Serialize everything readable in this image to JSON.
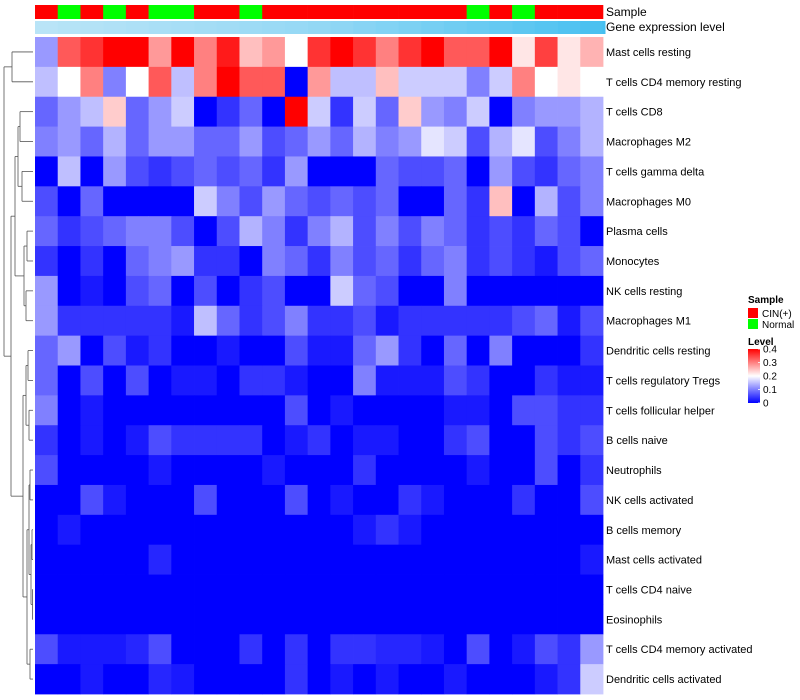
{
  "chart_data": {
    "type": "heatmap",
    "title": "",
    "annotation_tracks": [
      "Sample",
      "Gene expression level"
    ],
    "sample_groups": [
      "CIN(+)",
      "Normal",
      "CIN(+)",
      "Normal",
      "CIN(+)",
      "Normal",
      "Normal",
      "CIN(+)",
      "CIN(+)",
      "Normal",
      "CIN(+)",
      "CIN(+)",
      "CIN(+)",
      "CIN(+)",
      "CIN(+)",
      "CIN(+)",
      "CIN(+)",
      "CIN(+)",
      "CIN(+)",
      "Normal",
      "CIN(+)",
      "Normal",
      "CIN(+)",
      "CIN(+)",
      "CIN(+)"
    ],
    "expression_level_track": [
      0.05,
      0.08,
      0.1,
      0.12,
      0.15,
      0.18,
      0.2,
      0.22,
      0.25,
      0.28,
      0.3,
      0.33,
      0.36,
      0.4,
      0.45,
      0.5,
      0.55,
      0.6,
      0.65,
      0.7,
      0.75,
      0.8,
      0.85,
      0.9,
      0.95
    ],
    "rows": [
      "Mast cells resting",
      "T cells CD4 memory resting",
      "T cells CD8",
      "Macrophages M2",
      "T cells gamma delta",
      "Macrophages M0",
      "Plasma cells",
      "Monocytes",
      "NK cells resting",
      "Macrophages M1",
      "Dendritic cells resting",
      "T cells regulatory  Tregs",
      "T cells follicular helper",
      "B cells naive",
      "Neutrophils",
      "NK cells activated",
      "B cells memory",
      "Mast cells activated",
      "T cells CD4 naive",
      "Eosinophils",
      "T cells CD4 memory activated",
      "Dendritic cells activated"
    ],
    "values": [
      [
        0.12,
        0.33,
        0.36,
        0.4,
        0.4,
        0.28,
        0.4,
        0.3,
        0.38,
        0.25,
        0.28,
        0.2,
        0.36,
        0.4,
        0.36,
        0.3,
        0.36,
        0.4,
        0.33,
        0.33,
        0.4,
        0.22,
        0.35,
        0.22,
        0.26
      ],
      [
        0.15,
        0.2,
        0.3,
        0.1,
        0.2,
        0.33,
        0.15,
        0.3,
        0.4,
        0.33,
        0.33,
        0.0,
        0.28,
        0.15,
        0.15,
        0.25,
        0.16,
        0.16,
        0.16,
        0.1,
        0.16,
        0.3,
        0.2,
        0.22,
        0.2
      ],
      [
        0.08,
        0.12,
        0.15,
        0.24,
        0.08,
        0.12,
        0.16,
        0.0,
        0.04,
        0.08,
        0.0,
        0.4,
        0.16,
        0.04,
        0.16,
        0.08,
        0.24,
        0.12,
        0.1,
        0.16,
        0.0,
        0.1,
        0.12,
        0.12,
        0.14
      ],
      [
        0.1,
        0.12,
        0.08,
        0.14,
        0.08,
        0.12,
        0.12,
        0.08,
        0.08,
        0.12,
        0.06,
        0.08,
        0.12,
        0.08,
        0.14,
        0.1,
        0.12,
        0.18,
        0.16,
        0.06,
        0.14,
        0.18,
        0.06,
        0.1,
        0.14
      ],
      [
        0.0,
        0.15,
        0.0,
        0.12,
        0.06,
        0.04,
        0.06,
        0.08,
        0.06,
        0.08,
        0.04,
        0.12,
        0.0,
        0.0,
        0.0,
        0.08,
        0.06,
        0.06,
        0.08,
        0.0,
        0.12,
        0.06,
        0.04,
        0.08,
        0.1
      ],
      [
        0.06,
        0.0,
        0.08,
        0.0,
        0.0,
        0.0,
        0.0,
        0.16,
        0.1,
        0.06,
        0.12,
        0.08,
        0.06,
        0.08,
        0.06,
        0.08,
        0.0,
        0.0,
        0.08,
        0.04,
        0.25,
        0.0,
        0.14,
        0.06,
        0.1
      ],
      [
        0.08,
        0.04,
        0.06,
        0.08,
        0.1,
        0.1,
        0.06,
        0.0,
        0.06,
        0.14,
        0.1,
        0.04,
        0.1,
        0.14,
        0.06,
        0.1,
        0.06,
        0.1,
        0.08,
        0.04,
        0.06,
        0.04,
        0.08,
        0.06,
        0.0
      ],
      [
        0.04,
        0.0,
        0.04,
        0.0,
        0.08,
        0.1,
        0.12,
        0.04,
        0.04,
        0.0,
        0.1,
        0.08,
        0.04,
        0.1,
        0.06,
        0.08,
        0.04,
        0.08,
        0.1,
        0.04,
        0.06,
        0.04,
        0.02,
        0.06,
        0.08
      ],
      [
        0.12,
        0.0,
        0.02,
        0.0,
        0.06,
        0.08,
        0.0,
        0.06,
        0.0,
        0.04,
        0.06,
        0.0,
        0.0,
        0.16,
        0.08,
        0.06,
        0.0,
        0.0,
        0.1,
        0.0,
        0.0,
        0.0,
        0.0,
        0.0,
        0.0
      ],
      [
        0.12,
        0.04,
        0.04,
        0.04,
        0.04,
        0.04,
        0.02,
        0.15,
        0.08,
        0.04,
        0.06,
        0.1,
        0.04,
        0.04,
        0.06,
        0.02,
        0.04,
        0.04,
        0.04,
        0.04,
        0.04,
        0.06,
        0.08,
        0.02,
        0.06
      ],
      [
        0.08,
        0.12,
        0.0,
        0.06,
        0.02,
        0.04,
        0.0,
        0.0,
        0.02,
        0.0,
        0.0,
        0.06,
        0.02,
        0.02,
        0.08,
        0.12,
        0.04,
        0.0,
        0.08,
        0.0,
        0.1,
        0.0,
        0.0,
        0.0,
        0.04
      ],
      [
        0.08,
        0.0,
        0.06,
        0.0,
        0.06,
        0.0,
        0.02,
        0.02,
        0.0,
        0.04,
        0.04,
        0.02,
        0.0,
        0.0,
        0.1,
        0.02,
        0.02,
        0.02,
        0.06,
        0.04,
        0.0,
        0.0,
        0.04,
        0.02,
        0.02
      ],
      [
        0.1,
        0.0,
        0.02,
        0.0,
        0.0,
        0.0,
        0.0,
        0.0,
        0.0,
        0.0,
        0.0,
        0.06,
        0.0,
        0.02,
        0.0,
        0.0,
        0.0,
        0.0,
        0.02,
        0.02,
        0.0,
        0.06,
        0.06,
        0.04,
        0.04
      ],
      [
        0.04,
        0.0,
        0.02,
        0.0,
        0.02,
        0.06,
        0.04,
        0.04,
        0.04,
        0.04,
        0.0,
        0.02,
        0.04,
        0.0,
        0.02,
        0.02,
        0.0,
        0.0,
        0.04,
        0.06,
        0.0,
        0.0,
        0.06,
        0.04,
        0.06
      ],
      [
        0.06,
        0.0,
        0.0,
        0.0,
        0.0,
        0.02,
        0.0,
        0.0,
        0.0,
        0.0,
        0.02,
        0.0,
        0.0,
        0.0,
        0.04,
        0.0,
        0.0,
        0.0,
        0.0,
        0.02,
        0.0,
        0.0,
        0.06,
        0.0,
        0.04
      ],
      [
        0.0,
        0.0,
        0.06,
        0.02,
        0.0,
        0.0,
        0.0,
        0.06,
        0.0,
        0.0,
        0.0,
        0.06,
        0.0,
        0.02,
        0.0,
        0.0,
        0.04,
        0.02,
        0.0,
        0.0,
        0.0,
        0.04,
        0.0,
        0.0,
        0.06
      ],
      [
        0.0,
        0.02,
        0.0,
        0.0,
        0.0,
        0.0,
        0.0,
        0.0,
        0.0,
        0.0,
        0.0,
        0.0,
        0.0,
        0.0,
        0.02,
        0.04,
        0.02,
        0.0,
        0.0,
        0.0,
        0.0,
        0.0,
        0.0,
        0.0,
        0.0
      ],
      [
        0.0,
        0.0,
        0.0,
        0.0,
        0.0,
        0.03,
        0.0,
        0.0,
        0.0,
        0.0,
        0.0,
        0.0,
        0.0,
        0.0,
        0.0,
        0.0,
        0.0,
        0.0,
        0.0,
        0.0,
        0.0,
        0.0,
        0.0,
        0.0,
        0.02
      ],
      [
        0.0,
        0.0,
        0.0,
        0.0,
        0.0,
        0.0,
        0.0,
        0.0,
        0.0,
        0.0,
        0.0,
        0.0,
        0.0,
        0.0,
        0.0,
        0.0,
        0.0,
        0.0,
        0.0,
        0.0,
        0.0,
        0.0,
        0.0,
        0.0,
        0.0
      ],
      [
        0.0,
        0.0,
        0.0,
        0.0,
        0.0,
        0.0,
        0.0,
        0.0,
        0.0,
        0.0,
        0.0,
        0.0,
        0.0,
        0.0,
        0.0,
        0.0,
        0.0,
        0.0,
        0.0,
        0.0,
        0.0,
        0.0,
        0.0,
        0.0,
        0.0
      ],
      [
        0.06,
        0.02,
        0.02,
        0.02,
        0.03,
        0.06,
        0.0,
        0.0,
        0.0,
        0.04,
        0.0,
        0.04,
        0.0,
        0.04,
        0.04,
        0.03,
        0.03,
        0.02,
        0.0,
        0.06,
        0.0,
        0.02,
        0.06,
        0.04,
        0.12
      ],
      [
        0.0,
        0.0,
        0.02,
        0.0,
        0.0,
        0.03,
        0.02,
        0.0,
        0.0,
        0.0,
        0.0,
        0.04,
        0.0,
        0.02,
        0.0,
        0.02,
        0.0,
        0.0,
        0.02,
        0.0,
        0.0,
        0.0,
        0.02,
        0.04,
        0.16
      ]
    ],
    "color_scale": {
      "min": 0,
      "mid": 0.2,
      "max": 0.4,
      "low": "#0000ff",
      "midcolor": "#ffffff",
      "high": "#ff0000"
    },
    "legend_sample": {
      "title": "Sample",
      "items": [
        {
          "label": "CIN(+)",
          "color": "#ff0000"
        },
        {
          "label": "Normal",
          "color": "#00ff00"
        }
      ]
    },
    "legend_level": {
      "title": "Level",
      "ticks": [
        "0.4",
        "0.3",
        "0.2",
        "0.1",
        "0"
      ]
    },
    "expression_track_colors": {
      "low": "#bfe6f7",
      "high": "#45bff0"
    },
    "dendrogram": "left"
  }
}
